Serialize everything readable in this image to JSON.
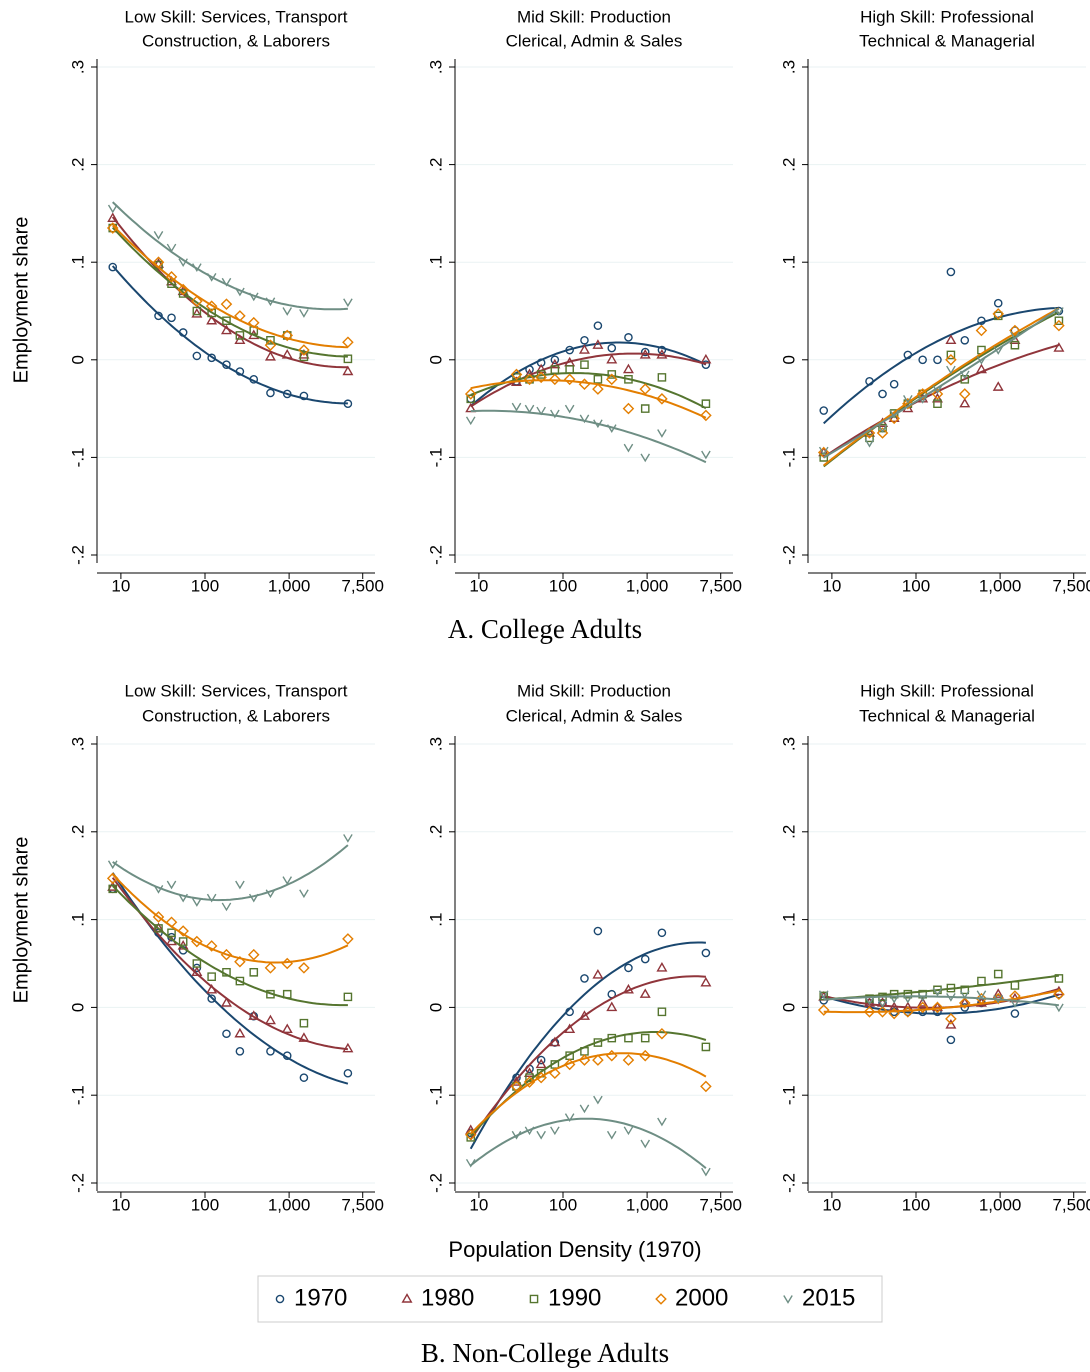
{
  "panels": [
    "A. College Adults",
    "B. Non-College Adults"
  ],
  "chart_data": [
    {
      "type": "scatter",
      "title": [
        "Low Skill: Services, Transport",
        "Construction, & Laborers"
      ],
      "ylabel": "Employment share",
      "x": [
        8,
        28,
        40,
        55,
        80,
        120,
        180,
        260,
        380,
        600,
        950,
        1500,
        5000
      ],
      "log_x": true,
      "fit": "quadratic",
      "grid": true,
      "xlim": [
        5.2,
        10500
      ],
      "ylim": [
        -0.2,
        0.3
      ],
      "xticks": [
        10,
        100,
        {
          "value": 1000,
          "label": "1,000"
        },
        {
          "value": 7500,
          "label": "7,500"
        }
      ],
      "yticks": [
        {
          "value": -0.2,
          "label": "-.2"
        },
        {
          "value": -0.1,
          "label": "-.1"
        },
        0,
        {
          "value": 0.1,
          "label": ".1"
        },
        {
          "value": 0.2,
          "label": ".2"
        },
        {
          "value": 0.3,
          "label": ".3"
        }
      ],
      "series": [
        {
          "name": "1970",
          "color": "#1a476f",
          "marker": "circle",
          "values": [
            0.095,
            0.045,
            0.043,
            0.028,
            0.004,
            0.002,
            -0.005,
            -0.012,
            -0.02,
            -0.034,
            -0.035,
            -0.037,
            -0.045
          ]
        },
        {
          "name": "1980",
          "color": "#90353b",
          "marker": "triangle",
          "values": [
            0.145,
            0.098,
            0.08,
            0.07,
            0.047,
            0.04,
            0.03,
            0.02,
            0.025,
            0.003,
            0.005,
            0.005,
            -0.012
          ]
        },
        {
          "name": "1990",
          "color": "#55752f",
          "marker": "square",
          "values": [
            0.135,
            0.097,
            0.078,
            0.068,
            0.05,
            0.048,
            0.04,
            0.025,
            0.03,
            0.02,
            0.025,
            0.003,
            0.001
          ]
        },
        {
          "name": "2000",
          "color": "#e37e00",
          "marker": "diamond",
          "values": [
            0.135,
            0.1,
            0.085,
            0.072,
            0.06,
            0.055,
            0.057,
            0.045,
            0.038,
            0.015,
            0.025,
            0.01,
            0.018
          ]
        },
        {
          "name": "2015",
          "color": "#6e8e84",
          "marker": "v",
          "values": [
            0.155,
            0.128,
            0.115,
            0.1,
            0.095,
            0.085,
            0.08,
            0.07,
            0.065,
            0.06,
            0.05,
            0.048,
            0.059
          ]
        }
      ]
    },
    {
      "type": "scatter",
      "title": [
        "Mid Skill: Production",
        "Clerical, Admin & Sales"
      ],
      "x": [
        8,
        28,
        40,
        55,
        80,
        120,
        180,
        260,
        380,
        600,
        950,
        1500,
        5000
      ],
      "log_x": true,
      "fit": "quadratic",
      "grid": true,
      "xlim": [
        5.2,
        10500
      ],
      "ylim": [
        -0.2,
        0.3
      ],
      "xticks": [
        10,
        100,
        {
          "value": 1000,
          "label": "1,000"
        },
        {
          "value": 7500,
          "label": "7,500"
        }
      ],
      "yticks": [
        {
          "value": -0.2,
          "label": "-.2"
        },
        {
          "value": -0.1,
          "label": "-.1"
        },
        0,
        {
          "value": 0.1,
          "label": ".1"
        },
        {
          "value": 0.2,
          "label": ".2"
        },
        {
          "value": 0.3,
          "label": ".3"
        }
      ],
      "series": [
        {
          "name": "1970",
          "color": "#1a476f",
          "marker": "circle",
          "values": [
            -0.04,
            -0.022,
            -0.01,
            -0.003,
            0.0,
            0.01,
            0.02,
            0.035,
            0.012,
            0.023,
            0.008,
            0.01,
            -0.005
          ]
        },
        {
          "name": "1980",
          "color": "#90353b",
          "marker": "triangle",
          "values": [
            -0.05,
            -0.023,
            -0.015,
            -0.01,
            -0.005,
            -0.003,
            0.01,
            0.015,
            0.0,
            -0.01,
            0.005,
            0.005,
            0.0
          ]
        },
        {
          "name": "1990",
          "color": "#55752f",
          "marker": "square",
          "values": [
            -0.04,
            -0.018,
            -0.02,
            -0.015,
            -0.01,
            -0.01,
            -0.005,
            -0.02,
            -0.015,
            -0.02,
            -0.05,
            -0.018,
            -0.045
          ]
        },
        {
          "name": "2000",
          "color": "#e37e00",
          "marker": "diamond",
          "values": [
            -0.035,
            -0.015,
            -0.02,
            -0.018,
            -0.02,
            -0.02,
            -0.025,
            -0.03,
            -0.02,
            -0.05,
            -0.03,
            -0.04,
            -0.057
          ]
        },
        {
          "name": "2015",
          "color": "#6e8e84",
          "marker": "v",
          "values": [
            -0.062,
            -0.048,
            -0.05,
            -0.052,
            -0.055,
            -0.05,
            -0.06,
            -0.065,
            -0.07,
            -0.09,
            -0.1,
            -0.075,
            -0.097
          ]
        }
      ]
    },
    {
      "type": "scatter",
      "title": [
        "High Skill: Professional",
        "Technical & Managerial"
      ],
      "x": [
        8,
        28,
        40,
        55,
        80,
        120,
        180,
        260,
        380,
        600,
        950,
        1500,
        5000
      ],
      "log_x": true,
      "fit": "quadratic",
      "grid": true,
      "xlim": [
        5.2,
        10500
      ],
      "ylim": [
        -0.2,
        0.3
      ],
      "xticks": [
        10,
        100,
        {
          "value": 1000,
          "label": "1,000"
        },
        {
          "value": 7500,
          "label": "7,500"
        }
      ],
      "yticks": [
        {
          "value": -0.2,
          "label": "-.2"
        },
        {
          "value": -0.1,
          "label": "-.1"
        },
        0,
        {
          "value": 0.1,
          "label": ".1"
        },
        {
          "value": 0.2,
          "label": ".2"
        },
        {
          "value": 0.3,
          "label": ".3"
        }
      ],
      "series": [
        {
          "name": "1970",
          "color": "#1a476f",
          "marker": "circle",
          "values": [
            -0.052,
            -0.022,
            -0.035,
            -0.025,
            0.005,
            0.0,
            0.0,
            0.09,
            0.02,
            0.04,
            0.058,
            0.03,
            0.05
          ]
        },
        {
          "name": "1980",
          "color": "#90353b",
          "marker": "triangle",
          "values": [
            -0.095,
            -0.075,
            -0.065,
            -0.06,
            -0.05,
            -0.04,
            -0.04,
            0.02,
            -0.045,
            -0.01,
            -0.028,
            0.02,
            0.012
          ]
        },
        {
          "name": "1990",
          "color": "#55752f",
          "marker": "square",
          "values": [
            -0.1,
            -0.08,
            -0.07,
            -0.055,
            -0.045,
            -0.035,
            -0.045,
            0.005,
            -0.02,
            0.01,
            0.045,
            0.015,
            0.04
          ]
        },
        {
          "name": "2000",
          "color": "#e37e00",
          "marker": "diamond",
          "values": [
            -0.095,
            -0.075,
            -0.075,
            -0.06,
            -0.045,
            -0.035,
            -0.035,
            0.0,
            -0.035,
            0.03,
            0.047,
            0.03,
            0.035
          ]
        },
        {
          "name": "2015",
          "color": "#6e8e84",
          "marker": "v",
          "values": [
            -0.093,
            -0.085,
            -0.07,
            -0.055,
            -0.04,
            -0.04,
            -0.03,
            -0.01,
            -0.015,
            0.0,
            0.01,
            0.025,
            0.05
          ]
        }
      ]
    },
    {
      "type": "scatter",
      "title": [
        "Low Skill: Services, Transport",
        "Construction, & Laborers"
      ],
      "ylabel": "Employment share",
      "x": [
        8,
        28,
        40,
        55,
        80,
        120,
        180,
        260,
        380,
        600,
        950,
        1500,
        5000
      ],
      "log_x": true,
      "fit": "quadratic",
      "grid": true,
      "xlim": [
        5.2,
        10500
      ],
      "ylim": [
        -0.2,
        0.3
      ],
      "xticks": [
        10,
        100,
        {
          "value": 1000,
          "label": "1,000"
        },
        {
          "value": 7500,
          "label": "7,500"
        }
      ],
      "yticks": [
        {
          "value": -0.2,
          "label": "-.2"
        },
        {
          "value": -0.1,
          "label": "-.1"
        },
        0,
        {
          "value": 0.1,
          "label": ".1"
        },
        {
          "value": 0.2,
          "label": ".2"
        },
        {
          "value": 0.3,
          "label": ".3"
        }
      ],
      "series": [
        {
          "name": "1970",
          "color": "#1a476f",
          "marker": "circle",
          "values": [
            0.135,
            0.085,
            0.08,
            0.065,
            0.045,
            0.01,
            -0.03,
            -0.05,
            -0.01,
            -0.05,
            -0.055,
            -0.08,
            -0.075
          ]
        },
        {
          "name": "1980",
          "color": "#90353b",
          "marker": "triangle",
          "values": [
            0.137,
            0.09,
            0.075,
            0.07,
            0.04,
            0.02,
            0.005,
            -0.03,
            -0.01,
            -0.015,
            -0.025,
            -0.035,
            -0.047
          ]
        },
        {
          "name": "1990",
          "color": "#55752f",
          "marker": "square",
          "values": [
            0.135,
            0.09,
            0.085,
            0.075,
            0.05,
            0.035,
            0.04,
            0.03,
            0.04,
            0.015,
            0.015,
            -0.018,
            0.012
          ]
        },
        {
          "name": "2000",
          "color": "#e37e00",
          "marker": "diamond",
          "values": [
            0.147,
            0.103,
            0.097,
            0.087,
            0.075,
            0.07,
            0.06,
            0.052,
            0.06,
            0.045,
            0.05,
            0.045,
            0.078
          ]
        },
        {
          "name": "2015",
          "color": "#6e8e84",
          "marker": "v",
          "values": [
            0.163,
            0.135,
            0.14,
            0.125,
            0.12,
            0.125,
            0.115,
            0.14,
            0.125,
            0.13,
            0.145,
            0.13,
            0.193
          ]
        }
      ]
    },
    {
      "type": "scatter",
      "title": [
        "Mid Skill: Production",
        "Clerical, Admin & Sales"
      ],
      "xlabel": "Population Density (1970)",
      "x": [
        8,
        28,
        40,
        55,
        80,
        120,
        180,
        260,
        380,
        600,
        950,
        1500,
        5000
      ],
      "log_x": true,
      "fit": "quadratic",
      "grid": true,
      "xlim": [
        5.2,
        10500
      ],
      "ylim": [
        -0.2,
        0.3
      ],
      "xticks": [
        10,
        100,
        {
          "value": 1000,
          "label": "1,000"
        },
        {
          "value": 7500,
          "label": "7,500"
        }
      ],
      "yticks": [
        {
          "value": -0.2,
          "label": "-.2"
        },
        {
          "value": -0.1,
          "label": "-.1"
        },
        0,
        {
          "value": 0.1,
          "label": ".1"
        },
        {
          "value": 0.2,
          "label": ".2"
        },
        {
          "value": 0.3,
          "label": ".3"
        }
      ],
      "series": [
        {
          "name": "1970",
          "color": "#1a476f",
          "marker": "circle",
          "values": [
            -0.143,
            -0.08,
            -0.07,
            -0.06,
            -0.04,
            -0.005,
            0.033,
            0.087,
            0.015,
            0.045,
            0.055,
            0.085,
            0.062
          ]
        },
        {
          "name": "1980",
          "color": "#90353b",
          "marker": "triangle",
          "values": [
            -0.14,
            -0.085,
            -0.075,
            -0.065,
            -0.04,
            -0.025,
            -0.01,
            0.037,
            0.0,
            0.02,
            0.015,
            0.045,
            0.028
          ]
        },
        {
          "name": "1990",
          "color": "#55752f",
          "marker": "square",
          "values": [
            -0.148,
            -0.09,
            -0.08,
            -0.075,
            -0.065,
            -0.055,
            -0.05,
            -0.04,
            -0.035,
            -0.035,
            -0.035,
            -0.005,
            -0.045
          ]
        },
        {
          "name": "2000",
          "color": "#e37e00",
          "marker": "diamond",
          "values": [
            -0.145,
            -0.09,
            -0.085,
            -0.08,
            -0.075,
            -0.065,
            -0.06,
            -0.06,
            -0.055,
            -0.06,
            -0.055,
            -0.03,
            -0.09
          ]
        },
        {
          "name": "2015",
          "color": "#6e8e84",
          "marker": "v",
          "values": [
            -0.177,
            -0.145,
            -0.14,
            -0.145,
            -0.14,
            -0.125,
            -0.115,
            -0.105,
            -0.145,
            -0.14,
            -0.155,
            -0.13,
            -0.187
          ]
        }
      ]
    },
    {
      "type": "scatter",
      "title": [
        "High Skill: Professional",
        "Technical & Managerial"
      ],
      "x": [
        8,
        28,
        40,
        55,
        80,
        120,
        180,
        260,
        380,
        600,
        950,
        1500,
        5000
      ],
      "log_x": true,
      "fit": "quadratic",
      "grid": true,
      "xlim": [
        5.2,
        10500
      ],
      "ylim": [
        -0.2,
        0.3
      ],
      "xticks": [
        10,
        100,
        {
          "value": 1000,
          "label": "1,000"
        },
        {
          "value": 7500,
          "label": "7,500"
        }
      ],
      "yticks": [
        {
          "value": -0.2,
          "label": "-.2"
        },
        {
          "value": -0.1,
          "label": "-.1"
        },
        0,
        {
          "value": 0.1,
          "label": ".1"
        },
        {
          "value": 0.2,
          "label": ".2"
        },
        {
          "value": 0.3,
          "label": ".3"
        }
      ],
      "series": [
        {
          "name": "1970",
          "color": "#1a476f",
          "marker": "circle",
          "values": [
            0.008,
            0.005,
            0.005,
            -0.005,
            -0.005,
            -0.005,
            -0.005,
            -0.037,
            0.0,
            0.005,
            0.01,
            -0.007,
            0.015
          ]
        },
        {
          "name": "1980",
          "color": "#90353b",
          "marker": "triangle",
          "values": [
            0.012,
            0.005,
            0.005,
            0.0,
            0.0,
            0.005,
            0.0,
            -0.02,
            0.005,
            0.005,
            0.015,
            0.01,
            0.018
          ]
        },
        {
          "name": "1990",
          "color": "#55752f",
          "marker": "square",
          "values": [
            0.013,
            0.01,
            0.012,
            0.015,
            0.015,
            0.015,
            0.02,
            0.022,
            0.02,
            0.03,
            0.038,
            0.025,
            0.033
          ]
        },
        {
          "name": "2000",
          "color": "#e37e00",
          "marker": "diamond",
          "values": [
            -0.003,
            -0.005,
            -0.005,
            -0.007,
            -0.005,
            0.0,
            0.0,
            -0.013,
            0.005,
            0.01,
            0.01,
            0.013,
            0.015
          ]
        },
        {
          "name": "2015",
          "color": "#6e8e84",
          "marker": "v",
          "values": [
            0.015,
            0.008,
            0.005,
            0.01,
            0.01,
            0.012,
            0.018,
            0.012,
            0.015,
            0.015,
            0.01,
            0.005,
            0.0
          ]
        }
      ]
    }
  ]
}
